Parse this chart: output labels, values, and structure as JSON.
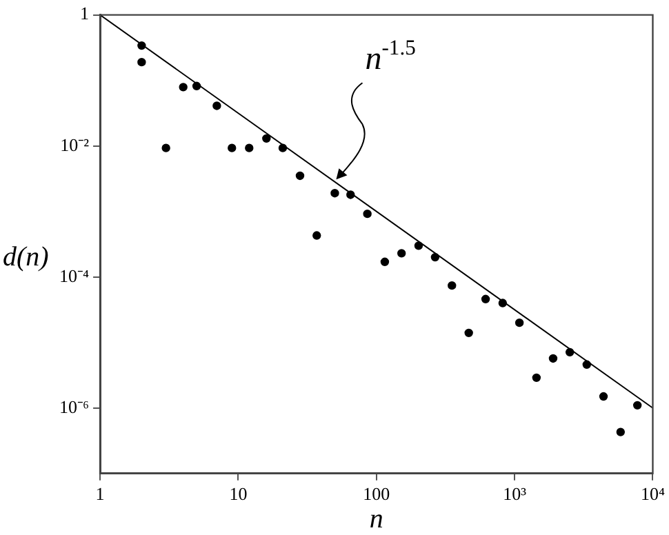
{
  "chart_data": {
    "type": "scatter",
    "xlabel": "n",
    "ylabel": "d(n)",
    "log": "xy",
    "grid": false,
    "legend": false,
    "marker": "circle",
    "xlim": [
      1,
      10000
    ],
    "ylim": [
      1e-07,
      1
    ],
    "xticks": [
      1,
      10,
      100,
      {
        "value": 1000,
        "label": "10³"
      },
      {
        "value": 10000,
        "label": "10⁴"
      }
    ],
    "yticks": [
      {
        "value": 1e-06,
        "label": "10⁻⁶"
      },
      {
        "value": 0.0001,
        "label": "10⁻⁴"
      },
      {
        "value": 0.01,
        "label": "10⁻²"
      },
      1
    ],
    "annotations": [
      {
        "text": "n$^{-1.5}$",
        "x": 50,
        "y": 0.0028
      }
    ],
    "series": [
      {
        "type": "scatter",
        "color": "#000000",
        "x": [
          2,
          2,
          3,
          4,
          5,
          7,
          9,
          12,
          16,
          21,
          28,
          37,
          50,
          65,
          86,
          115,
          152,
          202,
          266,
          352,
          466,
          617,
          820,
          1084,
          1440,
          1900,
          2510,
          3330,
          4400,
          5850,
          7740
        ],
        "values": [
          0.34,
          0.19,
          0.0093,
          0.079,
          0.082,
          0.041,
          0.0093,
          0.0093,
          0.013,
          0.0093,
          0.0035,
          0.00043,
          0.0019,
          0.0018,
          0.00092,
          0.00017,
          0.00023,
          0.0003,
          0.0002,
          7.4e-05,
          1.4e-05,
          4.6e-05,
          4e-05,
          2e-05,
          2.9e-06,
          5.7e-06,
          7.1e-06,
          4.6e-06,
          1.5e-06,
          4.3e-07,
          1.1e-06
        ]
      },
      {
        "type": "line",
        "color": "#000000",
        "marker": "none",
        "x": [
          1,
          10000
        ],
        "values": [
          1,
          1e-06
        ]
      }
    ]
  }
}
